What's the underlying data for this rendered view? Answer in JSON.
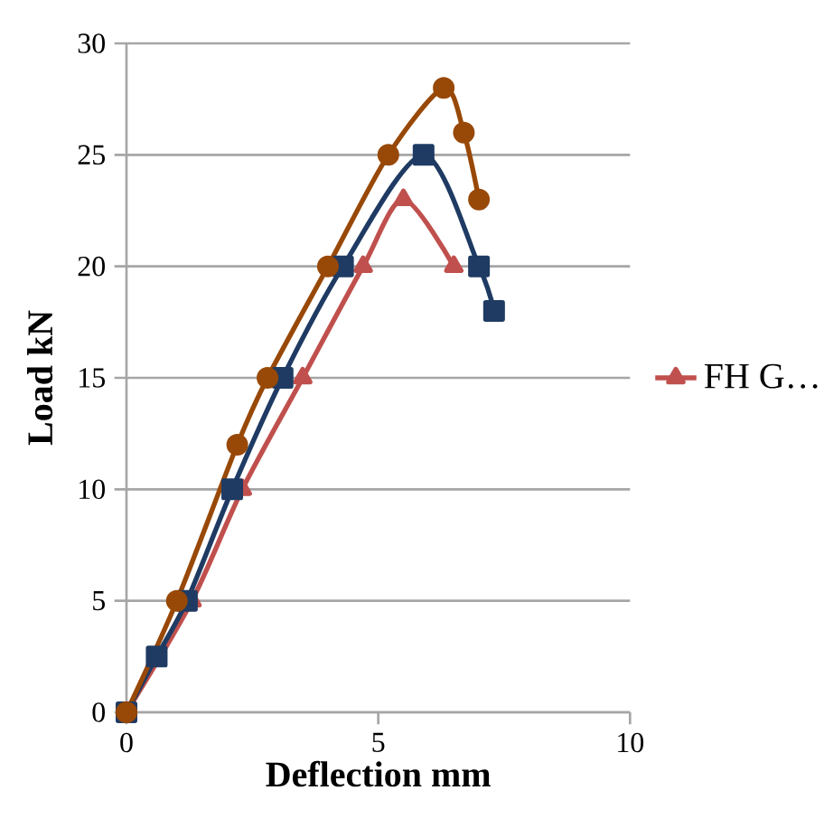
{
  "chart_data": {
    "type": "line",
    "xlabel": "Deflection mm",
    "ylabel": "Load kN",
    "xlim": [
      0,
      10
    ],
    "xticks": [
      0,
      5,
      10
    ],
    "ylim": [
      0,
      30
    ],
    "yticks": [
      0,
      5,
      10,
      15,
      20,
      25,
      30
    ],
    "grid": "y",
    "legend": "right",
    "series": [
      {
        "name": "FH G…",
        "color": "#c0504d",
        "marker": "triangle",
        "x": [
          0,
          1.3,
          2.3,
          3.5,
          4.7,
          5.5,
          6.5
        ],
        "values": [
          0,
          5,
          10,
          15,
          20,
          23,
          20
        ]
      },
      {
        "color": "#1f3b63",
        "marker": "square",
        "x": [
          0,
          0.6,
          1.2,
          2.1,
          3.1,
          4.3,
          5.9,
          7.0,
          7.3
        ],
        "values": [
          0,
          2.5,
          5,
          10,
          15,
          20,
          25,
          20,
          18
        ]
      },
      {
        "color": "#984807",
        "marker": "circle",
        "x": [
          0,
          1.0,
          2.2,
          2.8,
          4.0,
          5.2,
          6.3,
          6.7,
          7.0
        ],
        "values": [
          0,
          5,
          12,
          15,
          20,
          25,
          28,
          26,
          23
        ]
      }
    ]
  }
}
